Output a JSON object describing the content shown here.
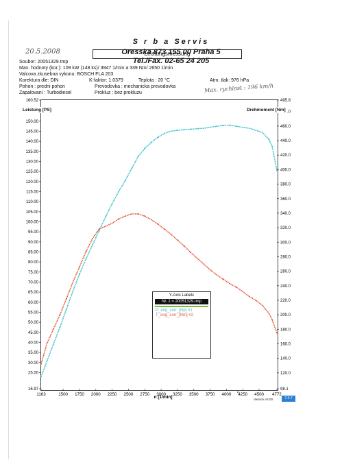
{
  "header": {
    "company": "S r b a    Servis",
    "address": "Oresska 873     155 00 Praha 5",
    "phone": "Tel./Fax. 02-65 24 205",
    "handwritten_date": "20.5.2008",
    "title": "Leistungsmessung",
    "handwritten_note": "Max. rychlost : 196 km/h"
  },
  "info": {
    "soubor": "Soubor: 20051329.tmp",
    "max": "Max. hodnoty (kor.):  109 kW (148 ks)/ 3947 1/min  a   339 Nm/ 2650 1/min",
    "valcova": "Valcova zkusebna vykonu: BOSCH FLA 203",
    "korektura": "Korektura dle: DIN",
    "kfaktor": "K-faktor: 1.0379",
    "teplota": "Teplota     :   20 °C",
    "atm": "Atm. tlak:  976 hPa",
    "pohon": "Pohon       :   predni pohon",
    "prevodovka": "Prevodovka :  mechanicka prevodovka",
    "zapalovani": "Zapalovani  :   Turbodiesel",
    "prokluz": "Prokluz  :   bez prokluzu"
  },
  "legend": {
    "title": "Y-Axis Labels",
    "file": "Nr. 1 = 20051329.tmp",
    "s1": "P_eng_corr_[Hp] #1",
    "s2": "T_eng_corr_[Nm] #2"
  },
  "footer": {
    "version": "Version V4.00",
    "badge": "7.4.7"
  },
  "chart_data": {
    "type": "line",
    "xlabel": "n   [1/min]",
    "ylabel_left": "Leistung  [PS]",
    "ylabel_right": "Drehmoment  [Nm]",
    "xlim": [
      1163,
      4772
    ],
    "ylim_left": [
      16.97,
      160.52
    ],
    "ylim_right": [
      98.1,
      495.8
    ],
    "x_ticks": [
      "1163",
      "1500",
      "1750",
      "2000",
      "2250",
      "2500",
      "2750",
      "3000",
      "3250",
      "3500",
      "3750",
      "4000",
      "4250",
      "4500",
      "4772"
    ],
    "y_ticks_left": [
      "16.97",
      "25.00",
      "30.00",
      "35.00",
      "40.00",
      "45.00",
      "50.00",
      "55.00",
      "60.00",
      "65.00",
      "70.00",
      "75.00",
      "80.00",
      "85.00",
      "90.00",
      "95.00",
      "100.00",
      "105.00",
      "110.00",
      "115.00",
      "120.00",
      "125.00",
      "130.00",
      "135.00",
      "140.00",
      "145.00",
      "150.00",
      "155.00",
      "160.52"
    ],
    "y_ticks_right": [
      "98.1",
      "120.0",
      "140.0",
      "160.0",
      "180.0",
      "200.0",
      "220.0",
      "240.0",
      "260.0",
      "280.0",
      "300.0",
      "320.0",
      "340.0",
      "360.0",
      "380.0",
      "400.0",
      "420.0",
      "440.0",
      "460.0",
      "480.0",
      "495.8"
    ],
    "grid": false,
    "series": [
      {
        "name": "P_eng_corr_[Hp] #1",
        "axis": "left",
        "color": "#3cc0cc",
        "x": [
          1163,
          1250,
          1350,
          1450,
          1550,
          1650,
          1750,
          1850,
          1950,
          2050,
          2150,
          2250,
          2350,
          2450,
          2550,
          2650,
          2750,
          2850,
          2950,
          3050,
          3150,
          3250,
          3350,
          3450,
          3550,
          3650,
          3750,
          3850,
          3950,
          4050,
          4150,
          4250,
          4350,
          4450,
          4550,
          4650,
          4700,
          4772
        ],
        "y": [
          23.0,
          30.5,
          39.0,
          47.5,
          56.5,
          65.5,
          74.0,
          81.5,
          88.5,
          95.5,
          102.5,
          109.0,
          115.0,
          120.5,
          126.5,
          132.5,
          136.5,
          139.5,
          142.0,
          144.0,
          145.0,
          145.5,
          145.8,
          146.0,
          146.3,
          146.5,
          147.0,
          147.5,
          148.0,
          148.0,
          147.5,
          147.0,
          146.5,
          145.5,
          144.5,
          141.0,
          137.5,
          125.5
        ]
      },
      {
        "name": "T_eng_corr_[Nm] #2",
        "axis": "right",
        "color": "#e35a3a",
        "x": [
          1163,
          1250,
          1350,
          1450,
          1550,
          1650,
          1750,
          1850,
          1950,
          2050,
          2150,
          2250,
          2350,
          2450,
          2550,
          2650,
          2750,
          2850,
          2950,
          3050,
          3150,
          3250,
          3350,
          3450,
          3550,
          3650,
          3750,
          3850,
          3950,
          4050,
          4150,
          4250,
          4350,
          4450,
          4550,
          4650,
          4700,
          4772
        ],
        "y": [
          132,
          160,
          180,
          200,
          222,
          245,
          266,
          287,
          305,
          318,
          322,
          326,
          332,
          336,
          339,
          339,
          336,
          331,
          325,
          318,
          311,
          303,
          295,
          286,
          278,
          270,
          262,
          255,
          249,
          243,
          238,
          232,
          225,
          220,
          213,
          202,
          193,
          175
        ]
      }
    ]
  }
}
